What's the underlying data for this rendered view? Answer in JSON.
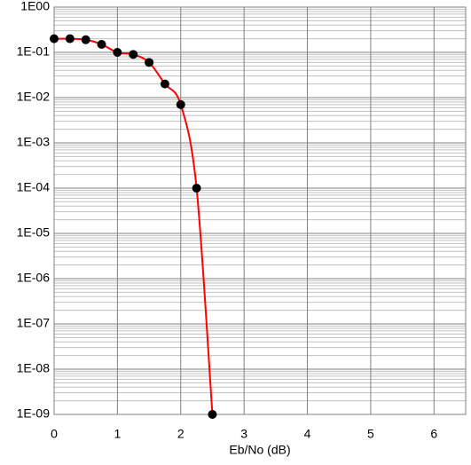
{
  "chart_data": {
    "type": "line",
    "xlabel": "Eb/No (dB)",
    "x": [
      0,
      0.25,
      0.5,
      0.75,
      1,
      1.25,
      1.5,
      1.75,
      2,
      2.25,
      2.5
    ],
    "series": [
      {
        "color": "#ff0000",
        "marker_color": "#000000",
        "values": [
          0.2,
          0.2,
          0.19,
          0.15,
          0.1,
          0.09,
          0.06,
          0.02,
          0.007,
          0.0001,
          1e-09
        ]
      }
    ],
    "xlim": [
      0,
      6.5
    ],
    "xticks": [
      0,
      1,
      2,
      3,
      4,
      5,
      6
    ],
    "ylim": [
      1e-09,
      1
    ],
    "ylog": true,
    "grid": true,
    "minor_grid": true,
    "yticks": [
      {
        "value": 1,
        "label": "1E00"
      },
      {
        "value": 0.1,
        "label": "1E-01"
      },
      {
        "value": 0.01,
        "label": "1E-02"
      },
      {
        "value": 0.001,
        "label": "1E-03"
      },
      {
        "value": 0.0001,
        "label": "1E-04"
      },
      {
        "value": 1e-05,
        "label": "1E-05"
      },
      {
        "value": 1e-06,
        "label": "1E-06"
      },
      {
        "value": 1e-07,
        "label": "1E-07"
      },
      {
        "value": 1e-08,
        "label": "1E-08"
      },
      {
        "value": 1e-09,
        "label": "1E-09"
      }
    ]
  }
}
